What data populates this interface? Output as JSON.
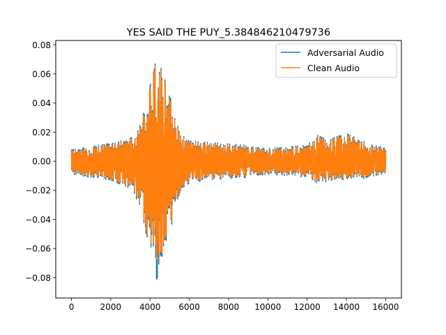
{
  "chart_data": {
    "type": "line",
    "title": "YES SAID THE PUY_5.384846210479736",
    "xlabel": "",
    "ylabel": "",
    "xlim": [
      -800,
      16800
    ],
    "ylim": [
      -0.094,
      0.083
    ],
    "xticks": [
      0,
      2000,
      4000,
      6000,
      8000,
      10000,
      12000,
      14000,
      16000
    ],
    "xtick_labels": [
      "0",
      "2000",
      "4000",
      "6000",
      "8000",
      "10000",
      "12000",
      "14000",
      "16000"
    ],
    "yticks": [
      -0.08,
      -0.06,
      -0.04,
      -0.02,
      0.0,
      0.02,
      0.04,
      0.06,
      0.08
    ],
    "ytick_labels": [
      "−0.08",
      "−0.06",
      "−0.04",
      "−0.02",
      "0.00",
      "0.02",
      "0.04",
      "0.06",
      "0.08"
    ],
    "grid": false,
    "legend_position": "top-right",
    "series": [
      {
        "name": "Adversarial Audio",
        "color": "#1f77b4",
        "x_range": [
          0,
          16000
        ],
        "envelope": {
          "x": [
            0,
            500,
            1000,
            1500,
            2000,
            2500,
            3000,
            3400,
            3700,
            4000,
            4200,
            4350,
            4500,
            4700,
            4900,
            5100,
            5300,
            5600,
            6000,
            7000,
            8000,
            9000,
            10000,
            11000,
            12000,
            12500,
            13000,
            13500,
            14000,
            14500,
            15000,
            15500,
            16000
          ],
          "upper": [
            0.008,
            0.009,
            0.01,
            0.012,
            0.012,
            0.014,
            0.016,
            0.022,
            0.038,
            0.052,
            0.062,
            0.074,
            0.066,
            0.059,
            0.049,
            0.041,
            0.028,
            0.018,
            0.014,
            0.013,
            0.012,
            0.011,
            0.009,
            0.01,
            0.011,
            0.018,
            0.015,
            0.017,
            0.019,
            0.016,
            0.013,
            0.011,
            0.009
          ],
          "lower": [
            -0.009,
            -0.01,
            -0.011,
            -0.012,
            -0.013,
            -0.016,
            -0.019,
            -0.028,
            -0.046,
            -0.058,
            -0.065,
            -0.086,
            -0.071,
            -0.062,
            -0.055,
            -0.044,
            -0.03,
            -0.019,
            -0.015,
            -0.013,
            -0.012,
            -0.011,
            -0.009,
            -0.01,
            -0.011,
            -0.015,
            -0.014,
            -0.012,
            -0.013,
            -0.012,
            -0.012,
            -0.01,
            -0.008
          ]
        }
      },
      {
        "name": "Clean Audio",
        "color": "#ff7f0e",
        "x_range": [
          0,
          16000
        ],
        "envelope": {
          "x": [
            0,
            500,
            1000,
            1500,
            2000,
            2500,
            3000,
            3400,
            3700,
            4000,
            4200,
            4350,
            4500,
            4700,
            4900,
            5100,
            5300,
            5600,
            6000,
            7000,
            8000,
            9000,
            10000,
            11000,
            12000,
            12500,
            13000,
            13500,
            14000,
            14500,
            15000,
            15500,
            16000
          ],
          "upper": [
            0.007,
            0.008,
            0.009,
            0.011,
            0.011,
            0.013,
            0.015,
            0.021,
            0.036,
            0.05,
            0.06,
            0.073,
            0.064,
            0.057,
            0.047,
            0.039,
            0.027,
            0.017,
            0.013,
            0.012,
            0.011,
            0.01,
            0.008,
            0.009,
            0.01,
            0.017,
            0.014,
            0.016,
            0.018,
            0.015,
            0.012,
            0.01,
            0.008
          ],
          "lower": [
            -0.008,
            -0.009,
            -0.01,
            -0.011,
            -0.012,
            -0.015,
            -0.018,
            -0.026,
            -0.044,
            -0.055,
            -0.062,
            -0.07,
            -0.068,
            -0.06,
            -0.052,
            -0.042,
            -0.028,
            -0.018,
            -0.014,
            -0.012,
            -0.011,
            -0.01,
            -0.008,
            -0.009,
            -0.01,
            -0.014,
            -0.013,
            -0.011,
            -0.012,
            -0.011,
            -0.011,
            -0.009,
            -0.007
          ]
        }
      }
    ]
  }
}
